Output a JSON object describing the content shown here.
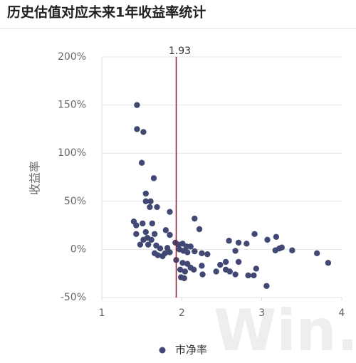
{
  "chart_data": {
    "type": "scatter",
    "title": "历史估值对应未来1年收益率统计",
    "y_label": "收益率",
    "watermark": "Win.d",
    "xlim": [
      1,
      4
    ],
    "xticks": [
      1,
      2,
      3,
      4
    ],
    "ylim": [
      -50,
      200
    ],
    "yticks": [
      {
        "value": -50,
        "label": "-50%"
      },
      {
        "value": 0,
        "label": "0%"
      },
      {
        "value": 50,
        "label": "50%"
      },
      {
        "value": 100,
        "label": "100%"
      },
      {
        "value": 150,
        "label": "150%"
      },
      {
        "value": 200,
        "label": "200%"
      }
    ],
    "grid": true,
    "vline": 1.93,
    "vline_color": "#8b1a2b",
    "legend": "bottom",
    "x": [
      1.44,
      1.44,
      1.52,
      1.5,
      1.65,
      1.55,
      1.55,
      1.61,
      1.6,
      1.69,
      1.85,
      1.4,
      1.43,
      1.43,
      1.51,
      1.63,
      1.55,
      1.57,
      1.66,
      1.62,
      1.58,
      1.68,
      1.73,
      1.8,
      1.85,
      2.16,
      2.22,
      1.92,
      1.96,
      2.01,
      2.06,
      2.11,
      1.97,
      2.02,
      2.07,
      2.16,
      2.25,
      2.32,
      1.79,
      1.85,
      1.76,
      1.7,
      1.82,
      1.93,
      2.01,
      2.07,
      1.98,
      2.04,
      2.11,
      2.15,
      1.99,
      2.03,
      2.26,
      2.25,
      2.43,
      2.48,
      2.55,
      2.55,
      2.6,
      2.67,
      2.71,
      2.67,
      2.59,
      2.71,
      2.81,
      2.91,
      2.93,
      2.83,
      2.9,
      3.06,
      3.07,
      3.18,
      3.17,
      3.22,
      3.25,
      3.38,
      3.69,
      3.83,
      1.52,
      1.48,
      1.66
    ],
    "series": [
      {
        "name": "市净率",
        "color": "#404873",
        "values": [
          150,
          125,
          122,
          90,
          74,
          58,
          50,
          50,
          44,
          44,
          39,
          29,
          25,
          16,
          27,
          27,
          18,
          12,
          16,
          10,
          5,
          4,
          1,
          20,
          15,
          32,
          21,
          7,
          5,
          6,
          3,
          3,
          0,
          -1.5,
          -3,
          -2,
          -4,
          -5,
          -4,
          -3,
          -7,
          -6,
          1.5,
          -11,
          -14,
          -15,
          -21,
          -23,
          -19,
          -21,
          -29,
          -30,
          -26,
          -17,
          -23,
          -16,
          -13,
          -21,
          -23,
          -26,
          -13,
          -1.5,
          9,
          7,
          6,
          16,
          -20,
          -27,
          -27,
          -38,
          10,
          13,
          -1,
          1,
          2,
          -1,
          -4,
          -14,
          10,
          5,
          -4
        ]
      }
    ]
  }
}
